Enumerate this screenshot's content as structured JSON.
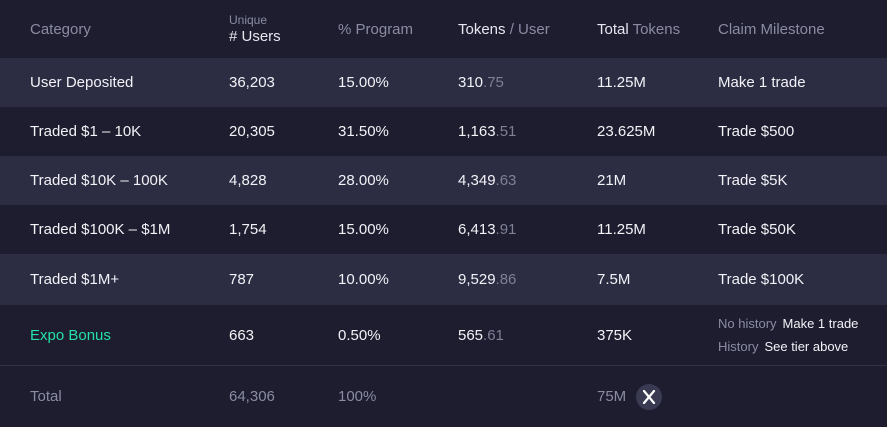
{
  "header": {
    "category": "Category",
    "unique_small": "Unique",
    "users": "# Users",
    "program": "% Program",
    "tokens_strong": "Tokens",
    "tokens_rest": " / User",
    "total_strong": "Total",
    "total_rest": " Tokens",
    "milestone": "Claim Milestone"
  },
  "rows": [
    {
      "category": "User Deposited",
      "users": "36,203",
      "program": "15.00%",
      "tokens_int": "310",
      "tokens_frac": ".75",
      "total": "11.25M",
      "milestone": "Make 1 trade"
    },
    {
      "category": "Traded $1 – 10K",
      "users": "20,305",
      "program": "31.50%",
      "tokens_int": "1,163",
      "tokens_frac": ".51",
      "total": "23.625M",
      "milestone": "Trade $500"
    },
    {
      "category": "Traded $10K – 100K",
      "users": "4,828",
      "program": "28.00%",
      "tokens_int": "4,349",
      "tokens_frac": ".63",
      "total": "21M",
      "milestone": "Trade $5K"
    },
    {
      "category": "Traded $100K – $1M",
      "users": "1,754",
      "program": "15.00%",
      "tokens_int": "6,413",
      "tokens_frac": ".91",
      "total": "11.25M",
      "milestone": "Trade $50K"
    },
    {
      "category": "Traded $1M+",
      "users": "787",
      "program": "10.00%",
      "tokens_int": "9,529",
      "tokens_frac": ".86",
      "total": "7.5M",
      "milestone": "Trade $100K"
    }
  ],
  "expo": {
    "category": "Expo Bonus",
    "users": "663",
    "program": "0.50%",
    "tokens_int": "565",
    "tokens_frac": ".61",
    "total": "375K",
    "no_history_label": "No history",
    "no_history_value": "Make 1 trade",
    "history_label": "History",
    "history_value": "See tier above"
  },
  "total": {
    "label": "Total",
    "users": "64,306",
    "program": "100%",
    "tokens": "75M"
  },
  "colors": {
    "background": "#1d1d2f",
    "row_alt": "#2c2d43",
    "accent_green": "#25e0a8"
  },
  "icons": {
    "token_logo": "x-logo-icon"
  }
}
